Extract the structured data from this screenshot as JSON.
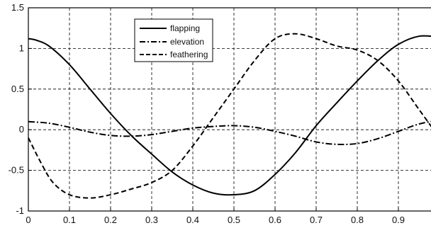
{
  "chart_data": {
    "type": "line",
    "xlim": [
      0,
      1
    ],
    "ylim": [
      -1,
      1.5
    ],
    "x_ticks": [
      "0",
      "0.1",
      "0.2",
      "0.3",
      "0.4",
      "0.5",
      "0.6",
      "0.7",
      "0.8",
      "0.9"
    ],
    "y_ticks": [
      "1.5",
      "1",
      "0.5",
      "0",
      "-0.5",
      "-1"
    ],
    "grid": true,
    "legend_position": "top-center",
    "series": [
      {
        "name": "flapping",
        "style": "solid",
        "x": [
          0,
          0.02,
          0.05,
          0.1,
          0.15,
          0.2,
          0.25,
          0.3,
          0.35,
          0.4,
          0.45,
          0.5,
          0.55,
          0.6,
          0.65,
          0.7,
          0.75,
          0.8,
          0.85,
          0.9,
          0.95,
          1.0
        ],
        "y": [
          1.12,
          1.1,
          1.03,
          0.8,
          0.5,
          0.2,
          -0.07,
          -0.3,
          -0.52,
          -0.68,
          -0.78,
          -0.8,
          -0.75,
          -0.55,
          -0.28,
          0.05,
          0.33,
          0.6,
          0.85,
          1.05,
          1.15,
          1.14
        ]
      },
      {
        "name": "elevation",
        "style": "dash-dot",
        "x": [
          0,
          0.05,
          0.1,
          0.15,
          0.2,
          0.25,
          0.3,
          0.35,
          0.4,
          0.45,
          0.5,
          0.55,
          0.6,
          0.65,
          0.7,
          0.75,
          0.8,
          0.85,
          0.9,
          0.95,
          1.0
        ],
        "y": [
          0.1,
          0.08,
          0.03,
          -0.03,
          -0.07,
          -0.08,
          -0.06,
          -0.02,
          0.02,
          0.04,
          0.05,
          0.03,
          -0.02,
          -0.08,
          -0.15,
          -0.18,
          -0.17,
          -0.11,
          -0.02,
          0.07,
          0.12
        ]
      },
      {
        "name": "feathering",
        "style": "dashed",
        "x": [
          0,
          0.03,
          0.06,
          0.1,
          0.15,
          0.2,
          0.25,
          0.3,
          0.35,
          0.4,
          0.45,
          0.5,
          0.55,
          0.6,
          0.65,
          0.7,
          0.75,
          0.8,
          0.85,
          0.9,
          0.95,
          1.0
        ],
        "y": [
          -0.1,
          -0.4,
          -0.65,
          -0.8,
          -0.84,
          -0.8,
          -0.73,
          -0.65,
          -0.5,
          -0.2,
          0.15,
          0.5,
          0.85,
          1.12,
          1.18,
          1.12,
          1.03,
          0.98,
          0.85,
          0.6,
          0.25,
          -0.1
        ]
      }
    ]
  }
}
